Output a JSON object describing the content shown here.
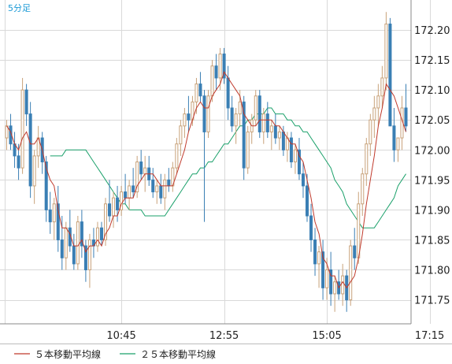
{
  "timeframe_label": "5分足",
  "legend": [
    {
      "label": "５本移動平均線",
      "color": "#c0392b"
    },
    {
      "label": "２５本移動平均線",
      "color": "#1aa06a"
    }
  ],
  "colors": {
    "up_candle": "#c8a27a",
    "down_candle": "#3a7fb4",
    "grid": "#d9d9d9",
    "axis": "#888888"
  },
  "chart_data": {
    "type": "candlestick",
    "title": "",
    "xlabel": "",
    "ylabel": "",
    "ylim": [
      171.71,
      172.25
    ],
    "y_ticks": [
      "172.20",
      "172.15",
      "172.10",
      "172.05",
      "172.00",
      "171.95",
      "171.90",
      "171.85",
      "171.80",
      "171.75"
    ],
    "x_tick_labels": [
      {
        "label": "10:45",
        "index": 29
      },
      {
        "label": "12:55",
        "index": 55
      },
      {
        "label": "15:05",
        "index": 81
      },
      {
        "label": "17:15",
        "index": 107
      }
    ],
    "grid": true,
    "legend_position": "bottom",
    "series_names": [
      "５本移動平均線",
      "２５本移動平均線"
    ],
    "candles": [
      [
        172.02,
        172.05,
        172.0,
        172.04
      ],
      [
        172.04,
        172.06,
        172.0,
        172.01
      ],
      [
        172.01,
        172.03,
        171.97,
        171.99
      ],
      [
        171.99,
        172.01,
        171.95,
        171.97
      ],
      [
        171.97,
        172.12,
        171.96,
        172.1
      ],
      [
        172.1,
        172.11,
        172.04,
        172.06
      ],
      [
        172.06,
        172.08,
        171.92,
        171.94
      ],
      [
        171.94,
        172.0,
        171.91,
        171.99
      ],
      [
        171.99,
        172.04,
        171.97,
        172.02
      ],
      [
        172.02,
        172.03,
        171.96,
        171.98
      ],
      [
        171.98,
        171.99,
        171.88,
        171.9
      ],
      [
        171.9,
        171.93,
        171.86,
        171.88
      ],
      [
        171.88,
        171.92,
        171.85,
        171.91
      ],
      [
        171.91,
        171.94,
        171.83,
        171.85
      ],
      [
        171.85,
        171.89,
        171.8,
        171.82
      ],
      [
        171.82,
        171.88,
        171.8,
        171.87
      ],
      [
        171.87,
        171.9,
        171.83,
        171.84
      ],
      [
        171.84,
        171.86,
        171.8,
        171.81
      ],
      [
        171.81,
        171.89,
        171.8,
        171.88
      ],
      [
        171.88,
        171.9,
        171.82,
        171.84
      ],
      [
        171.84,
        171.85,
        171.78,
        171.8
      ],
      [
        171.8,
        171.86,
        171.77,
        171.85
      ],
      [
        171.85,
        171.87,
        171.82,
        171.84
      ],
      [
        171.84,
        171.88,
        171.83,
        171.87
      ],
      [
        171.87,
        171.88,
        171.84,
        171.85
      ],
      [
        171.85,
        171.92,
        171.84,
        171.91
      ],
      [
        171.91,
        171.95,
        171.88,
        171.89
      ],
      [
        171.89,
        171.93,
        171.87,
        171.92
      ],
      [
        171.92,
        171.94,
        171.88,
        171.9
      ],
      [
        171.9,
        171.94,
        171.89,
        171.93
      ],
      [
        171.93,
        171.96,
        171.91,
        171.92
      ],
      [
        171.92,
        171.95,
        171.9,
        171.94
      ],
      [
        171.94,
        171.97,
        171.92,
        171.93
      ],
      [
        171.93,
        171.99,
        171.92,
        171.98
      ],
      [
        171.98,
        172.0,
        171.95,
        171.96
      ],
      [
        171.96,
        171.99,
        171.93,
        171.97
      ],
      [
        171.97,
        171.99,
        171.94,
        171.95
      ],
      [
        171.95,
        171.97,
        171.92,
        171.93
      ],
      [
        171.93,
        171.95,
        171.91,
        171.94
      ],
      [
        171.94,
        171.96,
        171.91,
        171.92
      ],
      [
        171.92,
        171.96,
        171.9,
        171.95
      ],
      [
        171.95,
        171.97,
        171.93,
        171.94
      ],
      [
        171.94,
        171.98,
        171.93,
        171.97
      ],
      [
        171.97,
        172.02,
        171.96,
        172.01
      ],
      [
        172.01,
        172.05,
        171.99,
        172.04
      ],
      [
        172.04,
        172.07,
        172.02,
        172.06
      ],
      [
        172.06,
        172.09,
        172.03,
        172.05
      ],
      [
        172.05,
        172.09,
        172.04,
        172.08
      ],
      [
        172.08,
        172.12,
        172.06,
        172.11
      ],
      [
        172.11,
        172.13,
        172.08,
        172.09
      ],
      [
        172.09,
        172.1,
        171.88,
        172.03
      ],
      [
        172.03,
        172.1,
        172.02,
        172.09
      ],
      [
        172.09,
        172.15,
        172.08,
        172.14
      ],
      [
        172.14,
        172.16,
        172.1,
        172.12
      ],
      [
        172.12,
        172.17,
        172.1,
        172.16
      ],
      [
        172.16,
        172.17,
        172.11,
        172.12
      ],
      [
        172.12,
        172.14,
        172.05,
        172.07
      ],
      [
        172.07,
        172.09,
        172.03,
        172.04
      ],
      [
        172.04,
        172.07,
        172.01,
        172.06
      ],
      [
        172.06,
        172.1,
        172.04,
        172.08
      ],
      [
        172.08,
        172.09,
        171.95,
        171.97
      ],
      [
        171.97,
        172.04,
        171.96,
        172.03
      ],
      [
        172.03,
        172.06,
        172.01,
        172.05
      ],
      [
        172.05,
        172.1,
        172.04,
        172.09
      ],
      [
        172.09,
        172.1,
        172.02,
        172.03
      ],
      [
        172.03,
        172.07,
        172.01,
        172.06
      ],
      [
        172.06,
        172.08,
        172.02,
        172.03
      ],
      [
        172.03,
        172.05,
        172.0,
        172.04
      ],
      [
        172.04,
        172.06,
        172.01,
        172.02
      ],
      [
        172.02,
        172.04,
        172.0,
        172.03
      ],
      [
        172.03,
        172.04,
        171.99,
        172.0
      ],
      [
        172.0,
        172.03,
        171.98,
        172.02
      ],
      [
        172.02,
        172.03,
        171.97,
        171.98
      ],
      [
        171.98,
        172.01,
        171.96,
        172.0
      ],
      [
        172.0,
        172.02,
        171.95,
        171.96
      ],
      [
        171.96,
        171.98,
        171.92,
        171.94
      ],
      [
        171.94,
        171.96,
        171.88,
        171.89
      ],
      [
        171.89,
        171.91,
        171.83,
        171.85
      ],
      [
        171.85,
        171.87,
        171.79,
        171.81
      ],
      [
        171.81,
        171.84,
        171.77,
        171.83
      ],
      [
        171.83,
        171.85,
        171.75,
        171.77
      ],
      [
        171.77,
        171.82,
        171.75,
        171.8
      ],
      [
        171.8,
        171.83,
        171.74,
        171.76
      ],
      [
        171.76,
        171.79,
        171.73,
        171.78
      ],
      [
        171.78,
        171.8,
        171.75,
        171.76
      ],
      [
        171.76,
        171.81,
        171.74,
        171.79
      ],
      [
        171.79,
        171.8,
        171.73,
        171.75
      ],
      [
        171.75,
        171.85,
        171.74,
        171.84
      ],
      [
        171.84,
        171.87,
        171.8,
        171.82
      ],
      [
        171.82,
        171.93,
        171.81,
        171.91
      ],
      [
        171.91,
        171.97,
        171.89,
        171.96
      ],
      [
        171.96,
        172.02,
        171.94,
        172.01
      ],
      [
        172.01,
        172.06,
        171.99,
        172.05
      ],
      [
        172.05,
        172.09,
        172.02,
        172.07
      ],
      [
        172.07,
        172.11,
        172.04,
        172.09
      ],
      [
        172.09,
        172.14,
        172.07,
        172.12
      ],
      [
        172.12,
        172.23,
        172.1,
        172.21
      ],
      [
        172.21,
        172.22,
        172.04,
        172.04
      ],
      [
        172.04,
        172.07,
        171.98,
        172.0
      ],
      [
        172.0,
        172.02,
        171.98,
        172.02
      ],
      [
        172.02,
        172.09,
        172.0,
        172.07
      ],
      [
        172.07,
        172.11,
        172.03,
        172.04
      ]
    ],
    "ma5": [
      172.04,
      172.03,
      172.01,
      172.0,
      172.02,
      172.03,
      172.01,
      172.01,
      172.02,
      172.0,
      171.97,
      171.95,
      171.94,
      171.9,
      171.87,
      171.87,
      171.86,
      171.84,
      171.84,
      171.85,
      171.83,
      171.84,
      171.84,
      171.85,
      171.84,
      171.86,
      171.87,
      171.89,
      171.89,
      171.91,
      171.92,
      171.92,
      171.92,
      171.94,
      171.95,
      171.96,
      171.96,
      171.96,
      171.95,
      171.94,
      171.94,
      171.94,
      171.94,
      171.96,
      171.98,
      172.0,
      172.03,
      172.05,
      172.07,
      172.08,
      172.07,
      172.07,
      172.09,
      172.1,
      172.11,
      172.13,
      172.12,
      172.11,
      172.1,
      172.09,
      172.06,
      172.05,
      172.04,
      172.04,
      172.05,
      172.05,
      172.05,
      172.05,
      172.04,
      172.04,
      172.03,
      172.02,
      172.01,
      172.01,
      171.99,
      171.98,
      171.95,
      171.92,
      171.88,
      171.86,
      171.82,
      171.81,
      171.79,
      171.79,
      171.77,
      171.78,
      171.77,
      171.78,
      171.79,
      171.82,
      171.86,
      171.91,
      171.95,
      171.99,
      172.04,
      172.07,
      172.11,
      172.1,
      172.09,
      172.07,
      172.05,
      172.03
    ],
    "ma25": [
      171.99,
      171.99,
      171.99,
      171.99,
      172.0,
      172.0,
      172.0,
      172.0,
      172.0,
      172.0,
      171.99,
      171.98,
      171.97,
      171.96,
      171.95,
      171.94,
      171.93,
      171.92,
      171.91,
      171.91,
      171.9,
      171.9,
      171.9,
      171.9,
      171.89,
      171.89,
      171.89,
      171.89,
      171.89,
      171.89,
      171.9,
      171.91,
      171.92,
      171.93,
      171.94,
      171.95,
      171.96,
      171.96,
      171.97,
      171.97,
      171.98,
      171.98,
      171.99,
      172.0,
      172.01,
      172.01,
      172.02,
      172.03,
      172.04,
      172.04,
      172.05,
      172.05,
      172.06,
      172.06,
      172.06,
      172.07,
      172.07,
      172.06,
      172.06,
      172.06,
      172.05,
      172.05,
      172.04,
      172.04,
      172.03,
      172.03,
      172.02,
      172.01,
      172.0,
      171.99,
      171.98,
      171.97,
      171.95,
      171.94,
      171.93,
      171.91,
      171.9,
      171.89,
      171.88,
      171.87,
      171.87,
      171.87,
      171.87,
      171.88,
      171.89,
      171.9,
      171.91,
      171.92,
      171.94,
      171.95,
      171.96
    ]
  }
}
